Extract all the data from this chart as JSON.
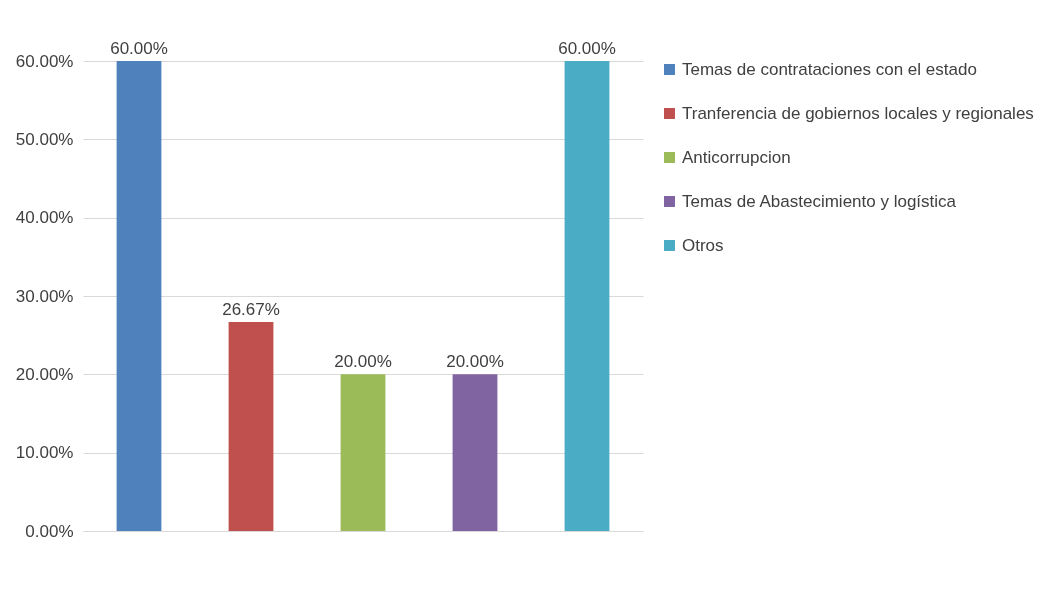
{
  "chart_data": {
    "type": "bar",
    "categories": [
      null,
      null,
      null,
      null,
      null
    ],
    "series": [
      {
        "name": "Temas de contrataciones con el estado",
        "color": "#4f81bd",
        "values": [
          60,
          null,
          null,
          null,
          null
        ],
        "value_labels": [
          "60.00%",
          null,
          null,
          null,
          null
        ]
      },
      {
        "name": "Tranferencia de gobiernos locales y regionales",
        "color": "#c0504d",
        "values": [
          null,
          26.67,
          null,
          null,
          null
        ],
        "value_labels": [
          null,
          "26.67%",
          null,
          null,
          null
        ]
      },
      {
        "name": "Anticorrupcion",
        "color": "#9bbb59",
        "values": [
          null,
          null,
          20,
          null,
          null
        ],
        "value_labels": [
          null,
          null,
          "20.00%",
          null,
          null
        ]
      },
      {
        "name": "Temas de Abastecimiento y logística",
        "color": "#8064a2",
        "values": [
          null,
          null,
          null,
          20,
          null
        ],
        "value_labels": [
          null,
          null,
          null,
          "20.00%",
          null
        ]
      },
      {
        "name": "Otros",
        "color": "#4bacc6",
        "values": [
          null,
          null,
          null,
          null,
          60
        ],
        "value_labels": [
          null,
          null,
          null,
          null,
          "60.00%"
        ]
      }
    ],
    "ylim": [
      0,
      60
    ],
    "yticks": [
      {
        "value": 0,
        "label": "0.00%"
      },
      {
        "value": 10,
        "label": "10.00%"
      },
      {
        "value": 20,
        "label": "20.00%"
      },
      {
        "value": 30,
        "label": "30.00%"
      },
      {
        "value": 40,
        "label": "40.00%"
      },
      {
        "value": 50,
        "label": "50.00%"
      },
      {
        "value": 60,
        "label": "60.00%"
      }
    ],
    "grid": "y",
    "legend": "right",
    "tick_labels": "y"
  }
}
